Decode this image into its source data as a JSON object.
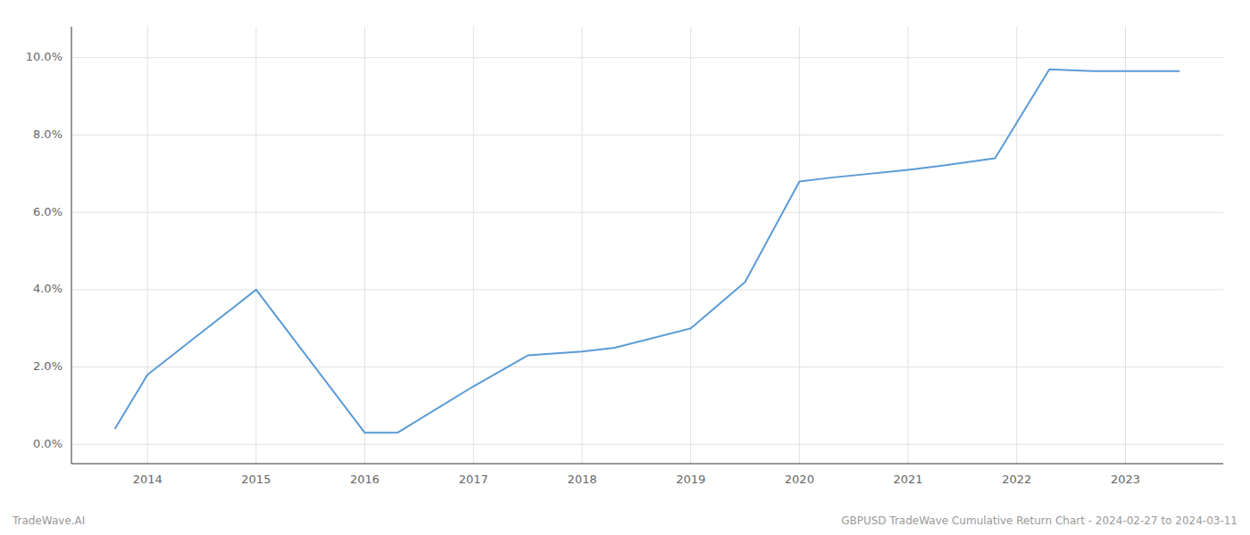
{
  "chart_data": {
    "type": "line",
    "x": [
      2013.7,
      2014.0,
      2015.0,
      2016.0,
      2016.3,
      2017.0,
      2017.5,
      2018.0,
      2018.3,
      2019.0,
      2019.5,
      2020.0,
      2020.3,
      2021.0,
      2021.3,
      2021.8,
      2022.3,
      2022.7,
      2023.0,
      2023.5
    ],
    "values": [
      0.004,
      0.018,
      0.04,
      0.003,
      0.003,
      0.015,
      0.023,
      0.024,
      0.025,
      0.03,
      0.042,
      0.068,
      0.069,
      0.071,
      0.072,
      0.074,
      0.097,
      0.0965,
      0.0965,
      0.0965
    ],
    "color": "#5b9bd5",
    "xlim": [
      2013.3,
      2023.9
    ],
    "xticks": [
      2014,
      2015,
      2016,
      2017,
      2018,
      2019,
      2020,
      2021,
      2022,
      2023
    ],
    "ylim": [
      -0.005,
      0.108
    ],
    "yticks": [
      {
        "value": 0.0,
        "label": "0.0%"
      },
      {
        "value": 0.02,
        "label": "2.0%"
      },
      {
        "value": 0.04,
        "label": "4.0%"
      },
      {
        "value": 0.06,
        "label": "6.0%"
      },
      {
        "value": 0.08,
        "label": "8.0%"
      },
      {
        "value": 0.1,
        "label": "10.0%"
      }
    ],
    "grid": true,
    "annotations": [
      "TradeWave.AI",
      "GBPUSD TradeWave Cumulative Return Chart - 2024-02-27 to 2024-03-11"
    ]
  }
}
